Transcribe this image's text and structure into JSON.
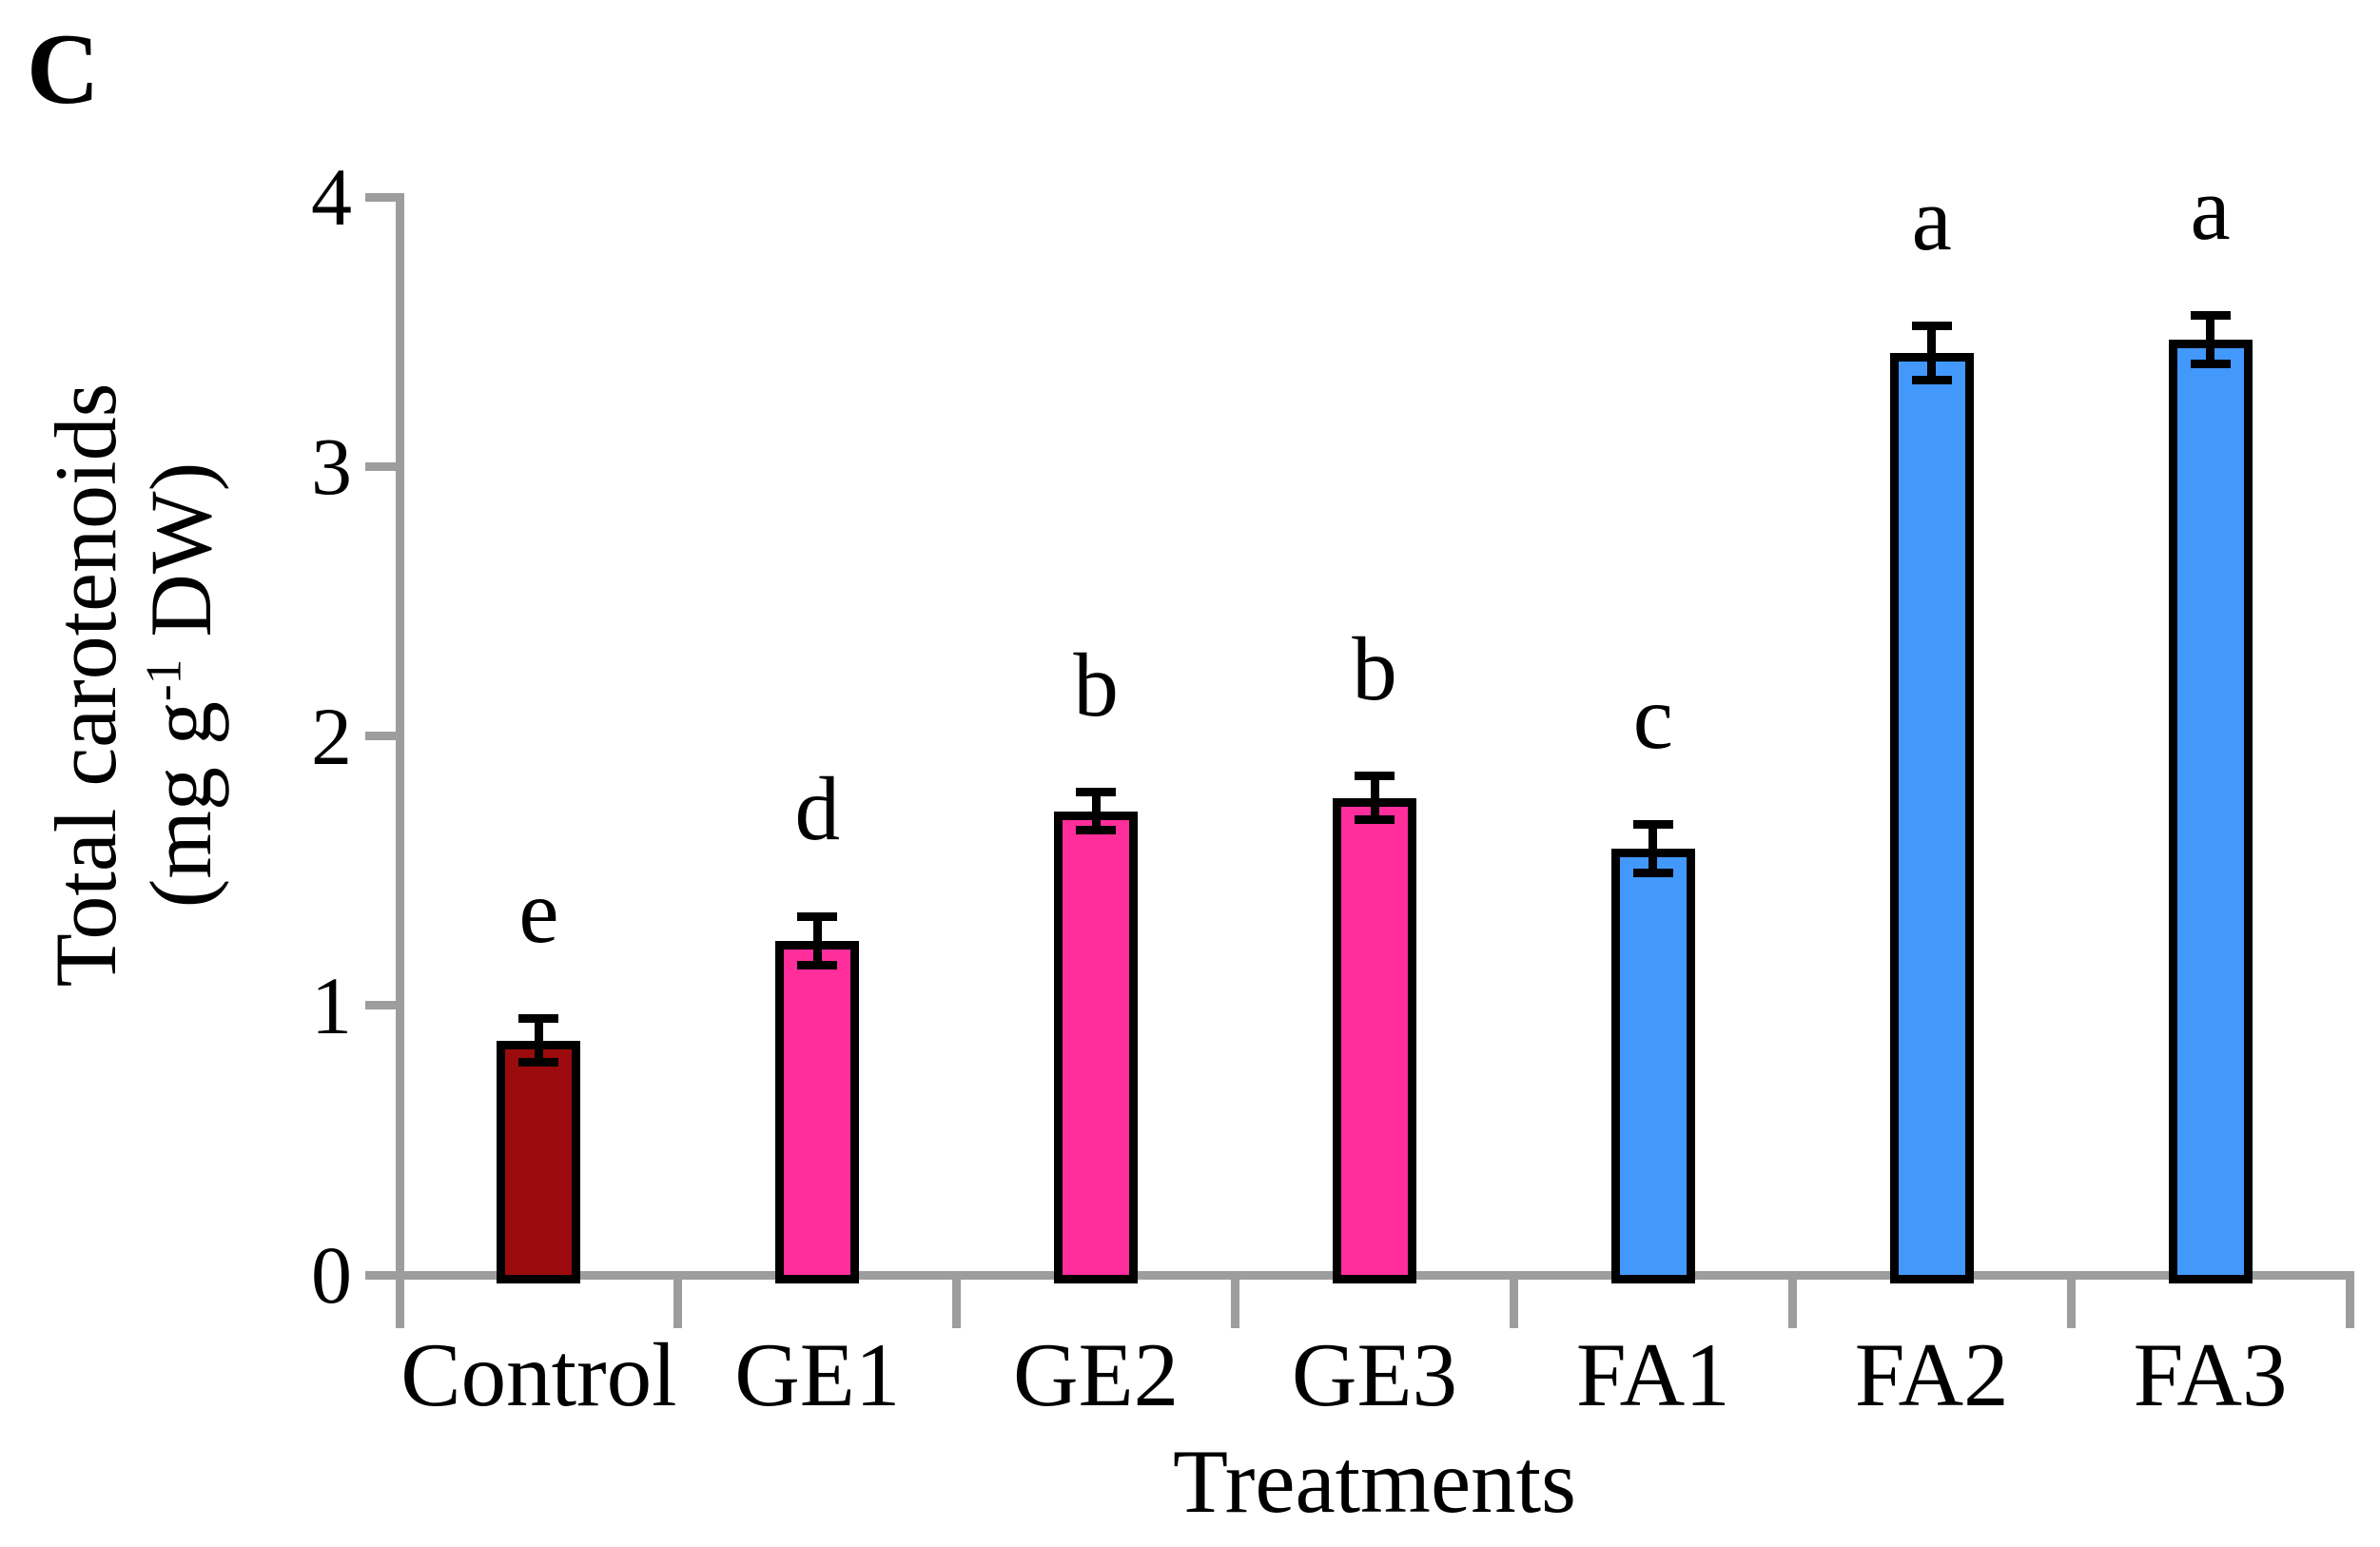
{
  "figure": {
    "panel_label": "C",
    "background_color": "#FFFFFF"
  },
  "chart_data": {
    "type": "bar",
    "title": "",
    "xlabel": "Treatments",
    "ylabel": "Total carotenoids (mg g⁻¹ DW)",
    "ylabel_lines": [
      "Total carotenoids",
      "(mg g⁻¹ DW)"
    ],
    "categories": [
      "Control",
      "GE1",
      "GE2",
      "GE3",
      "FA1",
      "FA2",
      "FA3"
    ],
    "values": [
      0.87,
      1.24,
      1.72,
      1.77,
      1.58,
      3.42,
      3.47
    ],
    "error_bars": [
      0.08,
      0.09,
      0.07,
      0.08,
      0.09,
      0.1,
      0.09
    ],
    "sig_letters": [
      "e",
      "d",
      "b",
      "b",
      "c",
      "a",
      "a"
    ],
    "bar_colors": [
      "#9B0A0C",
      "#FF2E9B",
      "#FF2E9B",
      "#FF2E9B",
      "#4398FB",
      "#4398FB",
      "#4398FB"
    ],
    "bar_border_color": "#000000",
    "error_bar_color": "#000000",
    "axis_color": "#9D9D9D",
    "ylim": [
      0,
      4
    ],
    "ytick_labels": [
      "0",
      "1",
      "2",
      "3",
      "4"
    ],
    "grid": "off",
    "legend": "none"
  }
}
